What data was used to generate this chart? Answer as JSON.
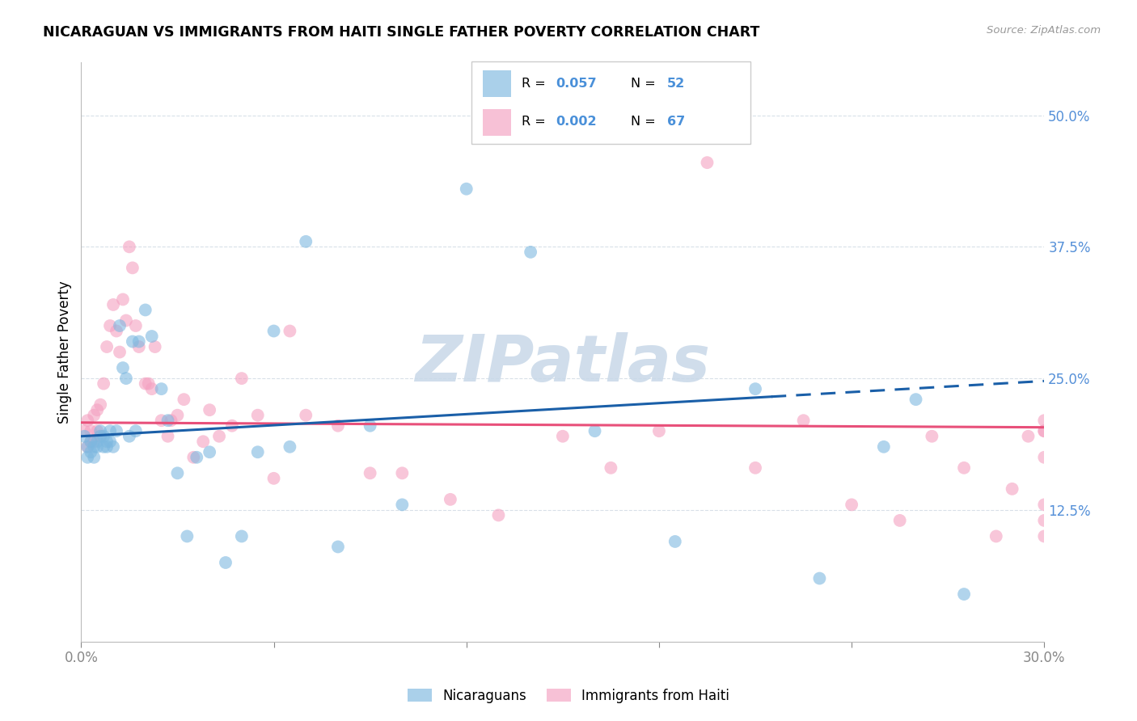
{
  "title": "NICARAGUAN VS IMMIGRANTS FROM HAITI SINGLE FATHER POVERTY CORRELATION CHART",
  "source": "Source: ZipAtlas.com",
  "ylabel": "Single Father Poverty",
  "right_ytick_vals": [
    0.5,
    0.375,
    0.25,
    0.125
  ],
  "right_ytick_labels": [
    "50.0%",
    "37.5%",
    "25.0%",
    "12.5%"
  ],
  "xlim": [
    0.0,
    0.3
  ],
  "ylim": [
    0.0,
    0.55
  ],
  "scatter_blue_color": "#7db8e0",
  "scatter_pink_color": "#f4a0c0",
  "trendline_blue_color": "#1a5fa8",
  "trendline_pink_color": "#e8507a",
  "watermark": "ZIPatlas",
  "watermark_color": "#c8d8e8",
  "grid_color": "#d8e0e8",
  "background_color": "#ffffff",
  "blue_R": 0.057,
  "blue_N": 52,
  "pink_R": 0.002,
  "pink_N": 67,
  "blue_x": [
    0.001,
    0.002,
    0.002,
    0.003,
    0.003,
    0.004,
    0.004,
    0.005,
    0.005,
    0.006,
    0.006,
    0.007,
    0.007,
    0.008,
    0.008,
    0.009,
    0.009,
    0.01,
    0.011,
    0.012,
    0.013,
    0.014,
    0.015,
    0.016,
    0.017,
    0.018,
    0.02,
    0.022,
    0.025,
    0.027,
    0.03,
    0.033,
    0.036,
    0.04,
    0.045,
    0.05,
    0.055,
    0.06,
    0.065,
    0.07,
    0.08,
    0.09,
    0.1,
    0.12,
    0.14,
    0.16,
    0.185,
    0.21,
    0.23,
    0.25,
    0.26,
    0.275
  ],
  "blue_y": [
    0.195,
    0.185,
    0.175,
    0.19,
    0.18,
    0.185,
    0.175,
    0.19,
    0.185,
    0.2,
    0.195,
    0.185,
    0.195,
    0.19,
    0.185,
    0.2,
    0.19,
    0.185,
    0.2,
    0.3,
    0.26,
    0.25,
    0.195,
    0.285,
    0.2,
    0.285,
    0.315,
    0.29,
    0.24,
    0.21,
    0.16,
    0.1,
    0.175,
    0.18,
    0.075,
    0.1,
    0.18,
    0.295,
    0.185,
    0.38,
    0.09,
    0.205,
    0.13,
    0.43,
    0.37,
    0.2,
    0.095,
    0.24,
    0.06,
    0.185,
    0.23,
    0.045
  ],
  "pink_x": [
    0.001,
    0.002,
    0.002,
    0.003,
    0.003,
    0.004,
    0.004,
    0.005,
    0.005,
    0.006,
    0.006,
    0.007,
    0.008,
    0.009,
    0.01,
    0.011,
    0.012,
    0.013,
    0.014,
    0.015,
    0.016,
    0.017,
    0.018,
    0.02,
    0.021,
    0.022,
    0.023,
    0.025,
    0.027,
    0.028,
    0.03,
    0.032,
    0.035,
    0.038,
    0.04,
    0.043,
    0.047,
    0.05,
    0.055,
    0.06,
    0.065,
    0.07,
    0.08,
    0.09,
    0.1,
    0.115,
    0.13,
    0.15,
    0.165,
    0.18,
    0.195,
    0.21,
    0.225,
    0.24,
    0.255,
    0.265,
    0.275,
    0.285,
    0.29,
    0.295,
    0.3,
    0.3,
    0.3,
    0.3,
    0.3,
    0.3,
    0.3
  ],
  "pink_y": [
    0.2,
    0.21,
    0.185,
    0.2,
    0.19,
    0.215,
    0.19,
    0.22,
    0.2,
    0.225,
    0.195,
    0.245,
    0.28,
    0.3,
    0.32,
    0.295,
    0.275,
    0.325,
    0.305,
    0.375,
    0.355,
    0.3,
    0.28,
    0.245,
    0.245,
    0.24,
    0.28,
    0.21,
    0.195,
    0.21,
    0.215,
    0.23,
    0.175,
    0.19,
    0.22,
    0.195,
    0.205,
    0.25,
    0.215,
    0.155,
    0.295,
    0.215,
    0.205,
    0.16,
    0.16,
    0.135,
    0.12,
    0.195,
    0.165,
    0.2,
    0.455,
    0.165,
    0.21,
    0.13,
    0.115,
    0.195,
    0.165,
    0.1,
    0.145,
    0.195,
    0.2,
    0.21,
    0.175,
    0.13,
    0.115,
    0.1,
    0.2
  ]
}
